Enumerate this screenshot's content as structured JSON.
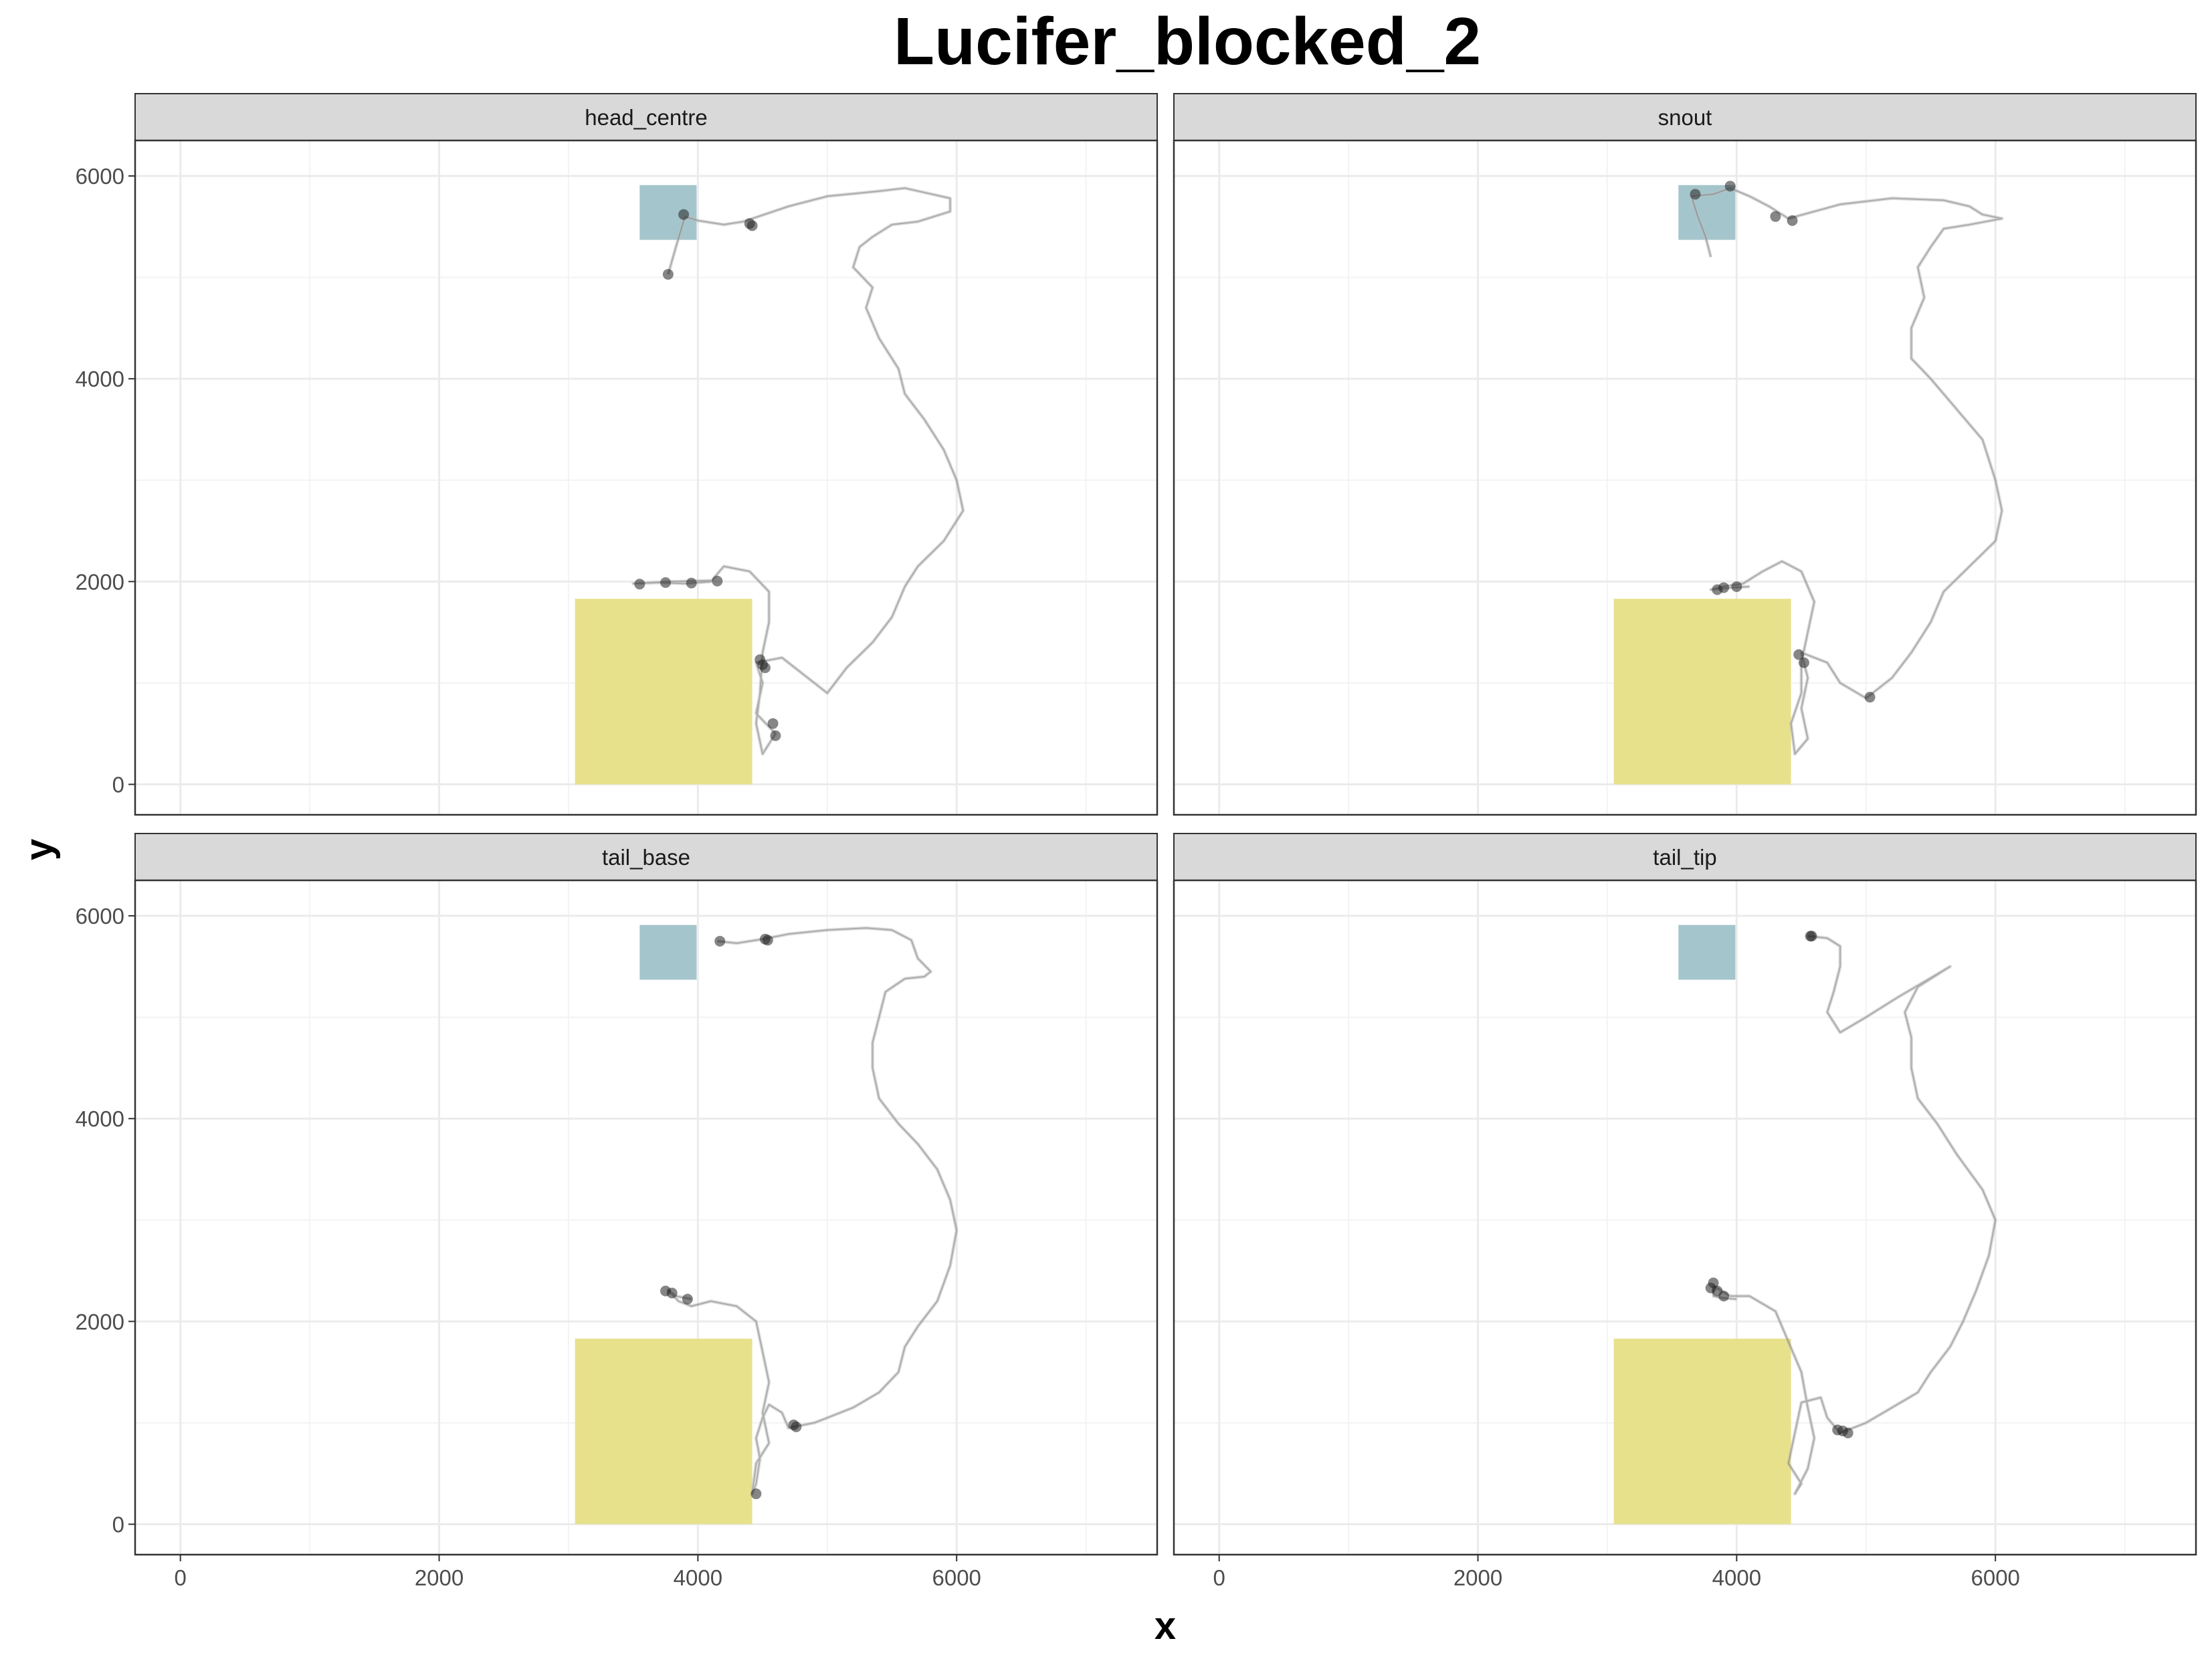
{
  "chart_data": {
    "type": "faceted-path",
    "title": "Lucifer_blocked_2",
    "xlabel": "x",
    "ylabel": "y",
    "xlim": [
      -350,
      7550
    ],
    "ylim": [
      -300,
      6350
    ],
    "x_breaks": [
      0,
      2000,
      4000,
      6000
    ],
    "y_breaks": [
      0,
      2000,
      4000,
      6000
    ],
    "x_tick_labels": [
      "0",
      "2000",
      "4000",
      "6000"
    ],
    "y_tick_labels": [
      "0",
      "2000",
      "4000",
      "6000"
    ],
    "grid": true,
    "colors": {
      "zone_blue": "#a4c5cb",
      "zone_yellow": "#e8e18c",
      "path": "#555555",
      "strip_fill": "#d9d9d9",
      "grid": "#ebebeb"
    },
    "zones": [
      {
        "name": "blue",
        "x": [
          3550,
          3990
        ],
        "y": [
          5370,
          5910
        ]
      },
      {
        "name": "yellow",
        "x": [
          3050,
          4420
        ],
        "y": [
          0,
          1830
        ]
      }
    ],
    "facets": [
      {
        "label": "head_centre",
        "path": [
          [
            3770,
            5030
          ],
          [
            3830,
            5300
          ],
          [
            3900,
            5600
          ],
          [
            4000,
            5560
          ],
          [
            4200,
            5520
          ],
          [
            4350,
            5550
          ],
          [
            4700,
            5700
          ],
          [
            5000,
            5800
          ],
          [
            5400,
            5850
          ],
          [
            5600,
            5880
          ],
          [
            5950,
            5780
          ],
          [
            5950,
            5650
          ],
          [
            5700,
            5550
          ],
          [
            5500,
            5520
          ],
          [
            5350,
            5400
          ],
          [
            5250,
            5300
          ],
          [
            5200,
            5100
          ],
          [
            5350,
            4900
          ],
          [
            5300,
            4700
          ],
          [
            5400,
            4400
          ],
          [
            5550,
            4100
          ],
          [
            5600,
            3850
          ],
          [
            5750,
            3600
          ],
          [
            5900,
            3300
          ],
          [
            6000,
            3000
          ],
          [
            6050,
            2700
          ],
          [
            5900,
            2400
          ],
          [
            5700,
            2150
          ],
          [
            5600,
            1950
          ],
          [
            5500,
            1650
          ],
          [
            5350,
            1400
          ],
          [
            5150,
            1150
          ],
          [
            5000,
            900
          ],
          [
            4800,
            1100
          ],
          [
            4650,
            1250
          ],
          [
            4450,
            1200
          ],
          [
            4500,
            1000
          ],
          [
            4450,
            700
          ],
          [
            4600,
            500
          ],
          [
            4500,
            300
          ],
          [
            4450,
            600
          ],
          [
            4480,
            900
          ],
          [
            4500,
            1300
          ],
          [
            4550,
            1600
          ],
          [
            4550,
            1900
          ],
          [
            4400,
            2100
          ],
          [
            4200,
            2150
          ],
          [
            4100,
            2000
          ],
          [
            3900,
            1980
          ],
          [
            3700,
            1990
          ],
          [
            3500,
            1980
          ],
          [
            3800,
            2000
          ],
          [
            4100,
            2010
          ]
        ],
        "dots": [
          [
            3770,
            5030
          ],
          [
            3890,
            5620
          ],
          [
            4400,
            5530
          ],
          [
            4420,
            5510
          ],
          [
            3550,
            1975
          ],
          [
            3750,
            1990
          ],
          [
            3950,
            1985
          ],
          [
            4150,
            2005
          ],
          [
            4500,
            1180
          ],
          [
            4480,
            1230
          ],
          [
            4520,
            1150
          ],
          [
            4580,
            600
          ],
          [
            4600,
            480
          ]
        ]
      },
      {
        "label": "snout",
        "path": [
          [
            3800,
            5200
          ],
          [
            3760,
            5400
          ],
          [
            3700,
            5600
          ],
          [
            3650,
            5800
          ],
          [
            3820,
            5820
          ],
          [
            3950,
            5880
          ],
          [
            4100,
            5800
          ],
          [
            4250,
            5700
          ],
          [
            4400,
            5580
          ],
          [
            4600,
            5650
          ],
          [
            4800,
            5720
          ],
          [
            5200,
            5780
          ],
          [
            5600,
            5760
          ],
          [
            5800,
            5700
          ],
          [
            5900,
            5620
          ],
          [
            6050,
            5580
          ],
          [
            5800,
            5520
          ],
          [
            5600,
            5480
          ],
          [
            5500,
            5300
          ],
          [
            5400,
            5100
          ],
          [
            5450,
            4800
          ],
          [
            5350,
            4500
          ],
          [
            5350,
            4200
          ],
          [
            5500,
            4000
          ],
          [
            5700,
            3700
          ],
          [
            5900,
            3400
          ],
          [
            6000,
            3000
          ],
          [
            6050,
            2700
          ],
          [
            6000,
            2400
          ],
          [
            5800,
            2150
          ],
          [
            5600,
            1900
          ],
          [
            5500,
            1600
          ],
          [
            5350,
            1300
          ],
          [
            5200,
            1050
          ],
          [
            5000,
            850
          ],
          [
            4800,
            1000
          ],
          [
            4700,
            1200
          ],
          [
            4500,
            1300
          ],
          [
            4550,
            1050
          ],
          [
            4500,
            750
          ],
          [
            4550,
            450
          ],
          [
            4450,
            300
          ],
          [
            4420,
            600
          ],
          [
            4500,
            900
          ],
          [
            4500,
            1200
          ],
          [
            4550,
            1500
          ],
          [
            4600,
            1800
          ],
          [
            4500,
            2100
          ],
          [
            4350,
            2200
          ],
          [
            4200,
            2100
          ],
          [
            4050,
            1980
          ],
          [
            3900,
            1950
          ],
          [
            3800,
            1920
          ],
          [
            3950,
            1940
          ],
          [
            4100,
            1950
          ]
        ],
        "dots": [
          [
            3680,
            5820
          ],
          [
            3950,
            5900
          ],
          [
            4300,
            5600
          ],
          [
            4430,
            5560
          ],
          [
            3850,
            1920
          ],
          [
            3900,
            1940
          ],
          [
            4000,
            1950
          ],
          [
            4480,
            1280
          ],
          [
            4520,
            1200
          ],
          [
            5030,
            860
          ]
        ]
      },
      {
        "label": "tail_base",
        "path": [
          [
            4150,
            5750
          ],
          [
            4300,
            5730
          ],
          [
            4500,
            5770
          ],
          [
            4700,
            5820
          ],
          [
            5000,
            5860
          ],
          [
            5300,
            5880
          ],
          [
            5500,
            5860
          ],
          [
            5650,
            5760
          ],
          [
            5700,
            5580
          ],
          [
            5800,
            5450
          ],
          [
            5750,
            5400
          ],
          [
            5600,
            5380
          ],
          [
            5450,
            5250
          ],
          [
            5400,
            5000
          ],
          [
            5350,
            4750
          ],
          [
            5350,
            4500
          ],
          [
            5400,
            4200
          ],
          [
            5550,
            3950
          ],
          [
            5700,
            3750
          ],
          [
            5850,
            3500
          ],
          [
            5950,
            3200
          ],
          [
            6000,
            2900
          ],
          [
            5950,
            2550
          ],
          [
            5850,
            2200
          ],
          [
            5700,
            1950
          ],
          [
            5600,
            1750
          ],
          [
            5550,
            1500
          ],
          [
            5400,
            1300
          ],
          [
            5200,
            1150
          ],
          [
            5000,
            1050
          ],
          [
            4900,
            1000
          ],
          [
            4700,
            950
          ],
          [
            4650,
            1100
          ],
          [
            4550,
            1180
          ],
          [
            4500,
            1050
          ],
          [
            4450,
            850
          ],
          [
            4480,
            650
          ],
          [
            4450,
            400
          ],
          [
            4420,
            300
          ],
          [
            4450,
            600
          ],
          [
            4550,
            800
          ],
          [
            4500,
            1100
          ],
          [
            4550,
            1400
          ],
          [
            4500,
            1700
          ],
          [
            4450,
            2000
          ],
          [
            4300,
            2150
          ],
          [
            4100,
            2200
          ],
          [
            3950,
            2150
          ],
          [
            3850,
            2200
          ],
          [
            3770,
            2310
          ],
          [
            3830,
            2250
          ],
          [
            3950,
            2220
          ]
        ],
        "dots": [
          [
            4170,
            5750
          ],
          [
            4520,
            5770
          ],
          [
            4540,
            5760
          ],
          [
            3750,
            2300
          ],
          [
            3800,
            2280
          ],
          [
            3920,
            2220
          ],
          [
            4740,
            980
          ],
          [
            4760,
            960
          ],
          [
            4450,
            300
          ]
        ]
      },
      {
        "label": "tail_tip",
        "path": [
          [
            4550,
            5800
          ],
          [
            4700,
            5780
          ],
          [
            4800,
            5700
          ],
          [
            4800,
            5500
          ],
          [
            4750,
            5250
          ],
          [
            4700,
            5050
          ],
          [
            4800,
            4850
          ],
          [
            5000,
            5000
          ],
          [
            5250,
            5200
          ],
          [
            5450,
            5350
          ],
          [
            5650,
            5500
          ],
          [
            5400,
            5300
          ],
          [
            5300,
            5050
          ],
          [
            5350,
            4800
          ],
          [
            5350,
            4500
          ],
          [
            5400,
            4200
          ],
          [
            5550,
            3950
          ],
          [
            5700,
            3650
          ],
          [
            5900,
            3300
          ],
          [
            6000,
            3000
          ],
          [
            5950,
            2650
          ],
          [
            5850,
            2300
          ],
          [
            5750,
            2000
          ],
          [
            5650,
            1750
          ],
          [
            5500,
            1500
          ],
          [
            5400,
            1300
          ],
          [
            5200,
            1150
          ],
          [
            5000,
            1000
          ],
          [
            4800,
            900
          ],
          [
            4700,
            1050
          ],
          [
            4650,
            1250
          ],
          [
            4500,
            1200
          ],
          [
            4450,
            900
          ],
          [
            4400,
            600
          ],
          [
            4500,
            400
          ],
          [
            4450,
            300
          ],
          [
            4550,
            550
          ],
          [
            4600,
            850
          ],
          [
            4550,
            1150
          ],
          [
            4500,
            1500
          ],
          [
            4400,
            1800
          ],
          [
            4300,
            2100
          ],
          [
            4100,
            2250
          ],
          [
            3950,
            2250
          ],
          [
            3820,
            2350
          ],
          [
            3820,
            2250
          ],
          [
            3900,
            2230
          ],
          [
            4000,
            2220
          ]
        ],
        "dots": [
          [
            4570,
            5800
          ],
          [
            4580,
            5800
          ],
          [
            3800,
            2330
          ],
          [
            3820,
            2380
          ],
          [
            3850,
            2300
          ],
          [
            3900,
            2250
          ],
          [
            4780,
            930
          ],
          [
            4820,
            920
          ],
          [
            4860,
            900
          ]
        ]
      }
    ]
  }
}
